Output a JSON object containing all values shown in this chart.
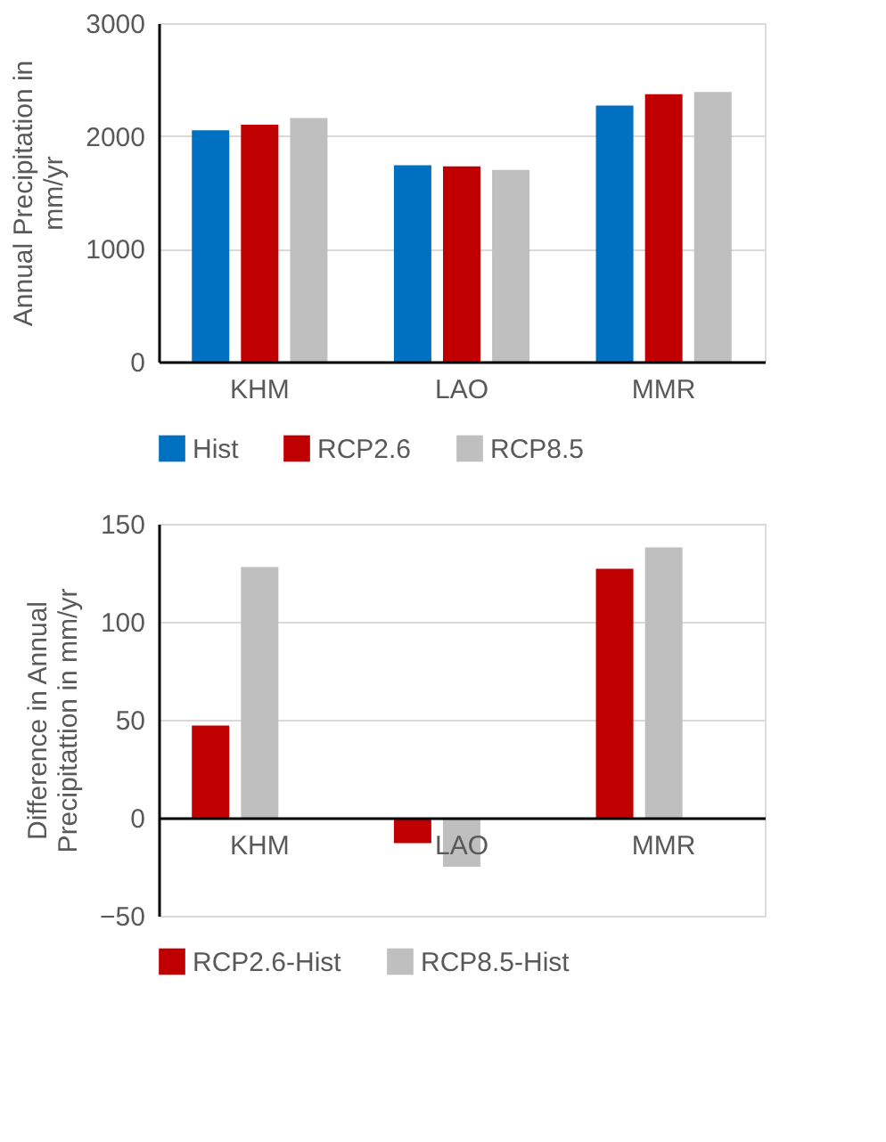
{
  "chart_data": [
    {
      "type": "bar",
      "ylabel": "Annual Precipitation in mm/yr",
      "categories": [
        "KHM",
        "LAO",
        "MMR"
      ],
      "series": [
        {
          "name": "Hist",
          "color": "#0070c0",
          "values": [
            2050,
            1740,
            2270
          ]
        },
        {
          "name": "RCP2.6",
          "color": "#c00000",
          "values": [
            2100,
            1730,
            2370
          ]
        },
        {
          "name": "RCP8.5",
          "color": "#bfbfbf",
          "values": [
            2160,
            1700,
            2390
          ]
        }
      ],
      "ylim": [
        0,
        3000
      ],
      "yticks": [
        0,
        1000,
        2000,
        3000
      ],
      "grid": "y",
      "legend": "bottom"
    },
    {
      "type": "bar",
      "ylabel": "Difference in Annual Precipitattion in mm/yr",
      "categories": [
        "KHM",
        "LAO",
        "MMR"
      ],
      "series": [
        {
          "name": "RCP2.6-Hist",
          "color": "#c00000",
          "values": [
            47,
            -13,
            127
          ]
        },
        {
          "name": "RCP8.5-Hist",
          "color": "#bfbfbf",
          "values": [
            128,
            -25,
            138
          ]
        }
      ],
      "ylim": [
        -50,
        150
      ],
      "yticks": [
        -50,
        0,
        50,
        100,
        150
      ],
      "grid": "y",
      "legend": "bottom"
    }
  ]
}
